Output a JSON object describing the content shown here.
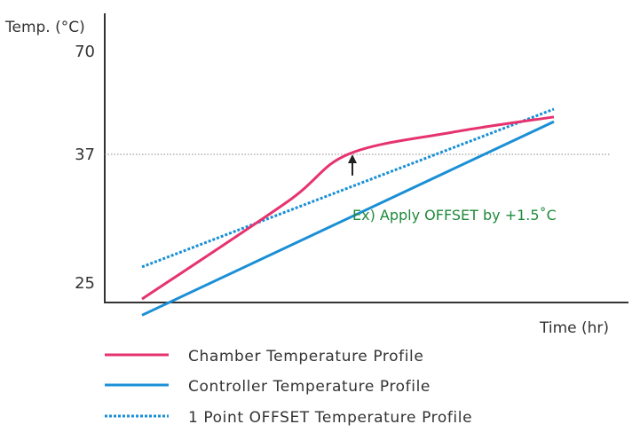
{
  "chart_data": {
    "type": "line",
    "title": "",
    "ylabel": "Temp. (°C)",
    "xlabel": "Time (hr)",
    "y_ticks": [
      "70",
      "37",
      "25"
    ],
    "y_tick_values": [
      70,
      37,
      25
    ],
    "ylim": [
      25,
      70
    ],
    "reference_line": {
      "y": 37,
      "style": "dotted"
    },
    "annotation": {
      "text": "Ex) Apply OFFSET by +1.5˚C",
      "offset": 1.5
    },
    "series": [
      {
        "name": "Chamber Temperature Profile",
        "color": "#e6336f",
        "style": "solid",
        "points": [
          [
            0,
            23.5
          ],
          [
            0.35,
            32.5
          ],
          [
            0.5,
            37
          ],
          [
            0.75,
            44
          ],
          [
            1,
            49
          ]
        ]
      },
      {
        "name": "Controller Temperature Profile",
        "color": "#1a8fd6",
        "style": "solid",
        "points": [
          [
            0,
            22
          ],
          [
            1,
            47.5
          ]
        ]
      },
      {
        "name": "1 Point OFFSET Temperature Profile",
        "color": "#1a8fd6",
        "style": "dotted",
        "points": [
          [
            0,
            26.5
          ],
          [
            1,
            51.5
          ]
        ]
      }
    ],
    "legend": {
      "position": "bottom"
    }
  }
}
